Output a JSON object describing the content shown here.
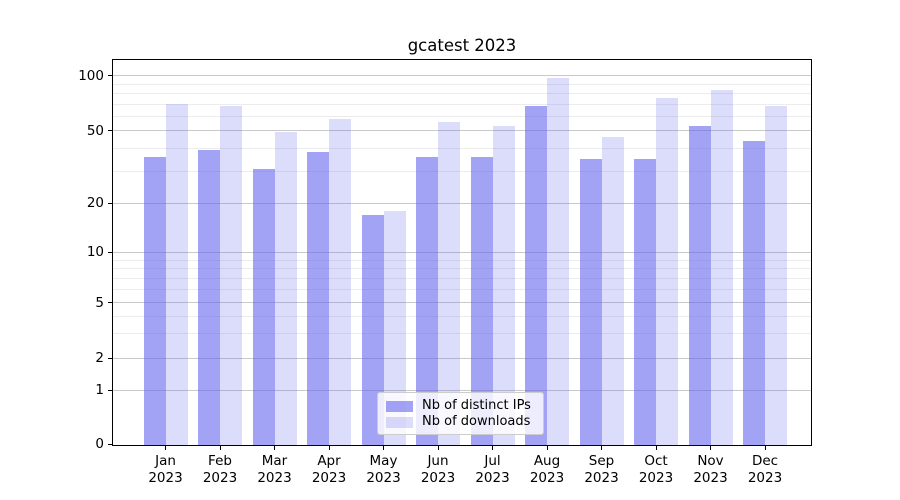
{
  "chart_data": {
    "type": "bar",
    "title": "gcatest 2023",
    "categories": [
      "Jan 2023",
      "Feb 2023",
      "Mar 2023",
      "Apr 2023",
      "May 2023",
      "Jun 2023",
      "Jul 2023",
      "Aug 2023",
      "Sep 2023",
      "Oct 2023",
      "Nov 2023",
      "Dec 2023"
    ],
    "series": [
      {
        "name": "Nb of distinct IPs",
        "color": "rgba(102,102,238,0.60)",
        "values": [
          36,
          39,
          31,
          38,
          17,
          36,
          36,
          68,
          35,
          35,
          53,
          44
        ]
      },
      {
        "name": "Nb of downloads",
        "color": "rgba(102,102,238,0.23)",
        "values": [
          70,
          68,
          49,
          58,
          18,
          56,
          53,
          97,
          46,
          76,
          84,
          68
        ]
      }
    ],
    "xlabel": "",
    "ylabel": "",
    "y_axis": {
      "scale": "symlog",
      "major_ticks": [
        0,
        1,
        2,
        5,
        10,
        20,
        50,
        100
      ],
      "minor_ticks": [
        3,
        4,
        6,
        7,
        8,
        9,
        30,
        40,
        60,
        70,
        80,
        90
      ],
      "ylim": [
        0,
        120
      ]
    },
    "grid": "both",
    "legend": {
      "position": "lower center",
      "entries": [
        "Nb of distinct IPs",
        "Nb of downloads"
      ]
    }
  },
  "colors": {
    "bar_dark": "rgba(102,102,238,0.60)",
    "bar_light": "rgba(102,102,238,0.23)",
    "grid_major": "#c9c9c9",
    "grid_minor": "#ececec",
    "spine": "#000000",
    "text": "#000000",
    "legend_border": "#cccccc",
    "legend_bg": "rgba(255,255,255,0.8)"
  }
}
